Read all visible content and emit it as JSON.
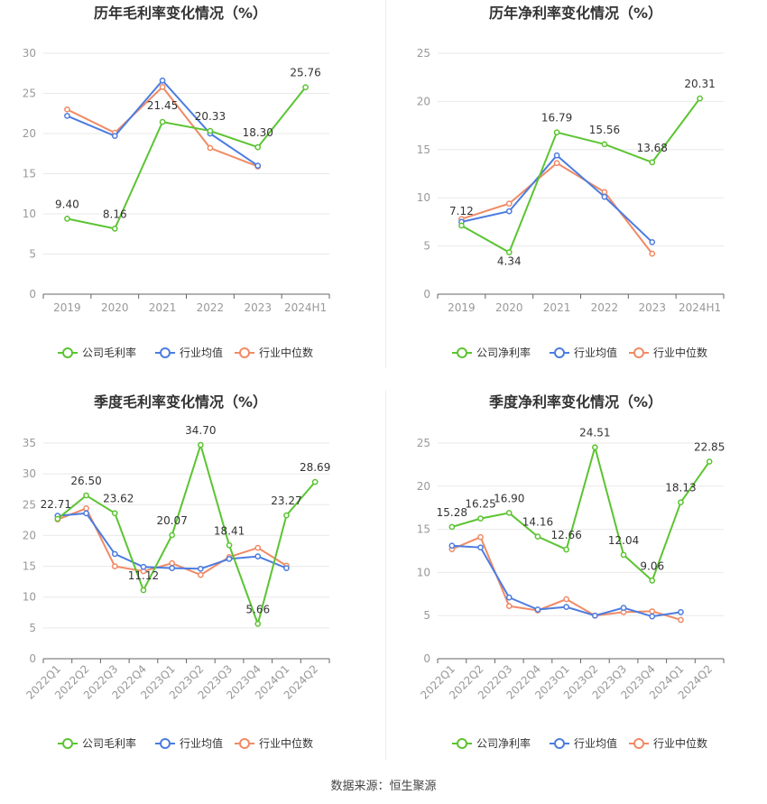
{
  "source": "数据来源：恒生聚源",
  "colors": {
    "company": "#5bc431",
    "avg": "#4c7ce0",
    "median": "#f08a65",
    "grid": "#e8e8e8",
    "axis": "#999999",
    "tick": "#999999",
    "label": "#333333",
    "title": "#333333"
  },
  "chart_data": [
    {
      "type": "line",
      "title": "历年毛利率变化情况（%）",
      "categories": [
        "2019",
        "2020",
        "2021",
        "2022",
        "2023",
        "2024H1"
      ],
      "ylim": [
        0,
        30
      ],
      "yticks": [
        0,
        5,
        10,
        15,
        20,
        25,
        30
      ],
      "series": [
        {
          "name": "公司毛利率",
          "values": [
            9.4,
            8.16,
            21.45,
            20.33,
            18.3,
            25.76
          ],
          "labels": [
            "9.40",
            "8.16",
            "21.45",
            "20.33",
            "18.30",
            "25.76"
          ]
        },
        {
          "name": "行业均值",
          "values": [
            22.2,
            19.7,
            26.6,
            20.0,
            16.0,
            null
          ]
        },
        {
          "name": "行业中位数",
          "values": [
            23.0,
            20.1,
            25.8,
            18.2,
            15.9,
            null
          ]
        }
      ]
    },
    {
      "type": "line",
      "title": "历年净利率变化情况（%）",
      "categories": [
        "2019",
        "2020",
        "2021",
        "2022",
        "2023",
        "2024H1"
      ],
      "ylim": [
        0,
        25
      ],
      "yticks": [
        0,
        5,
        10,
        15,
        20,
        25
      ],
      "series": [
        {
          "name": "公司净利率",
          "values": [
            7.12,
            4.34,
            16.79,
            15.56,
            13.68,
            20.31
          ],
          "labels": [
            "7.12",
            "4.34",
            "16.79",
            "15.56",
            "13.68",
            "20.31"
          ]
        },
        {
          "name": "行业均值",
          "values": [
            7.5,
            8.6,
            14.4,
            10.1,
            5.4,
            null
          ]
        },
        {
          "name": "行业中位数",
          "values": [
            7.8,
            9.4,
            13.6,
            10.6,
            4.2,
            null
          ]
        }
      ]
    },
    {
      "type": "line",
      "title": "季度毛利率变化情况（%）",
      "categories": [
        "2022Q1",
        "2022Q2",
        "2022Q3",
        "2022Q4",
        "2023Q1",
        "2023Q2",
        "2023Q3",
        "2023Q4",
        "2024Q1",
        "2024Q2"
      ],
      "ylim": [
        0,
        35
      ],
      "yticks": [
        0,
        5,
        10,
        15,
        20,
        25,
        30,
        35
      ],
      "series": [
        {
          "name": "公司毛利率",
          "values": [
            22.71,
            26.5,
            23.62,
            11.12,
            20.07,
            34.7,
            18.41,
            5.66,
            23.27,
            28.69
          ],
          "labels": [
            "22.71",
            "26.50",
            "23.62",
            "11.12",
            "20.07",
            "34.70",
            "18.41",
            "5.66",
            "23.27",
            "28.69"
          ]
        },
        {
          "name": "行业均值",
          "values": [
            23.2,
            23.6,
            17.0,
            14.9,
            14.7,
            14.6,
            16.2,
            16.6,
            14.7,
            null
          ]
        },
        {
          "name": "行业中位数",
          "values": [
            22.6,
            24.4,
            15.0,
            14.2,
            15.5,
            13.6,
            16.5,
            18.0,
            15.1,
            null
          ]
        }
      ]
    },
    {
      "type": "line",
      "title": "季度净利率变化情况（%）",
      "categories": [
        "2022Q1",
        "2022Q2",
        "2022Q3",
        "2022Q4",
        "2023Q1",
        "2023Q2",
        "2023Q3",
        "2023Q4",
        "2024Q1",
        "2024Q2"
      ],
      "ylim": [
        0,
        25
      ],
      "yticks": [
        0,
        5,
        10,
        15,
        20,
        25
      ],
      "series": [
        {
          "name": "公司净利率",
          "values": [
            15.28,
            16.25,
            16.9,
            14.16,
            12.66,
            24.51,
            12.04,
            9.06,
            18.13,
            22.85
          ],
          "labels": [
            "15.28",
            "16.25",
            "16.90",
            "14.16",
            "12.66",
            "24.51",
            "12.04",
            "9.06",
            "18.13",
            "22.85"
          ]
        },
        {
          "name": "行业均值",
          "values": [
            13.1,
            12.9,
            7.1,
            5.7,
            6.0,
            5.0,
            5.9,
            4.9,
            5.4,
            null
          ]
        },
        {
          "name": "行业中位数",
          "values": [
            12.7,
            14.1,
            6.1,
            5.6,
            6.9,
            5.0,
            5.4,
            5.5,
            4.5,
            null
          ]
        }
      ]
    }
  ]
}
